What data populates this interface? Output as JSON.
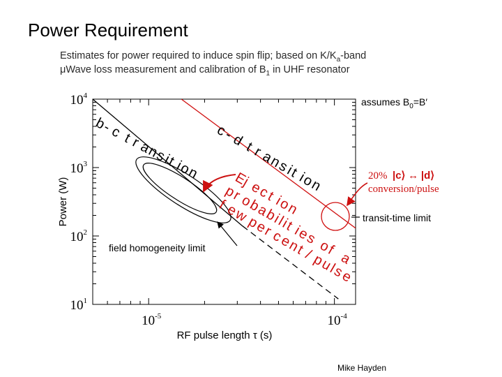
{
  "slide": {
    "title": "Power Requirement",
    "subtitle_line1": "Estimates for power required to induce spin flip; based on K/K",
    "subtitle_line1_sub": "a",
    "subtitle_line1_end": "-band",
    "subtitle_line2": "μWave loss measurement and calibration of B",
    "subtitle_line2_sub": "1",
    "subtitle_line2_end": " in UHF resonator",
    "assumes_text": "assumes B",
    "assumes_sub": "0",
    "assumes_end": "=B′",
    "conversion_percent": "20%",
    "conversion_from": "c",
    "conversion_to": "d",
    "conversion_label": "conversion/pulse",
    "transit_limit_label": "transit-time limit",
    "credit": "Mike Hayden"
  },
  "chart_data": {
    "type": "line",
    "xlabel": "RF pulse length τ (s)",
    "ylabel": "Power (W)",
    "xscale": "log",
    "yscale": "log",
    "xlim": [
      5e-06,
      0.00013
    ],
    "ylim": [
      10,
      10000
    ],
    "x_ticks": [
      {
        "value": 1e-05,
        "base": "10",
        "exp": "-5"
      },
      {
        "value": 0.0001,
        "base": "10",
        "exp": "-4"
      }
    ],
    "y_ticks": [
      {
        "value": 10,
        "base": "10",
        "exp": "1"
      },
      {
        "value": 100,
        "base": "10",
        "exp": "2"
      },
      {
        "value": 1000,
        "base": "10",
        "exp": "3"
      },
      {
        "value": 10000,
        "base": "10",
        "exp": "4"
      }
    ],
    "series": [
      {
        "name": "b-c transition",
        "color": "#000000",
        "style": "solid",
        "x": [
          5e-06,
          3.2e-05
        ],
        "y": [
          10000,
          140
        ]
      },
      {
        "name": "b-c extension",
        "color": "#000000",
        "style": "dashed",
        "x": [
          3.2e-05,
          0.000105
        ],
        "y": [
          140,
          12
        ]
      },
      {
        "name": "c-d transition",
        "color": "#d01010",
        "style": "solid",
        "x": [
          1.5e-05,
          0.00013
        ],
        "y": [
          10000,
          130
        ]
      }
    ],
    "annotations": {
      "bc_label": "b-c transition",
      "cd_label": "c-d transition",
      "field_homogeneity": "field homogeneity limit",
      "ejection": [
        "Ejection",
        "probabilities of a",
        "few percent/pulse"
      ]
    }
  }
}
